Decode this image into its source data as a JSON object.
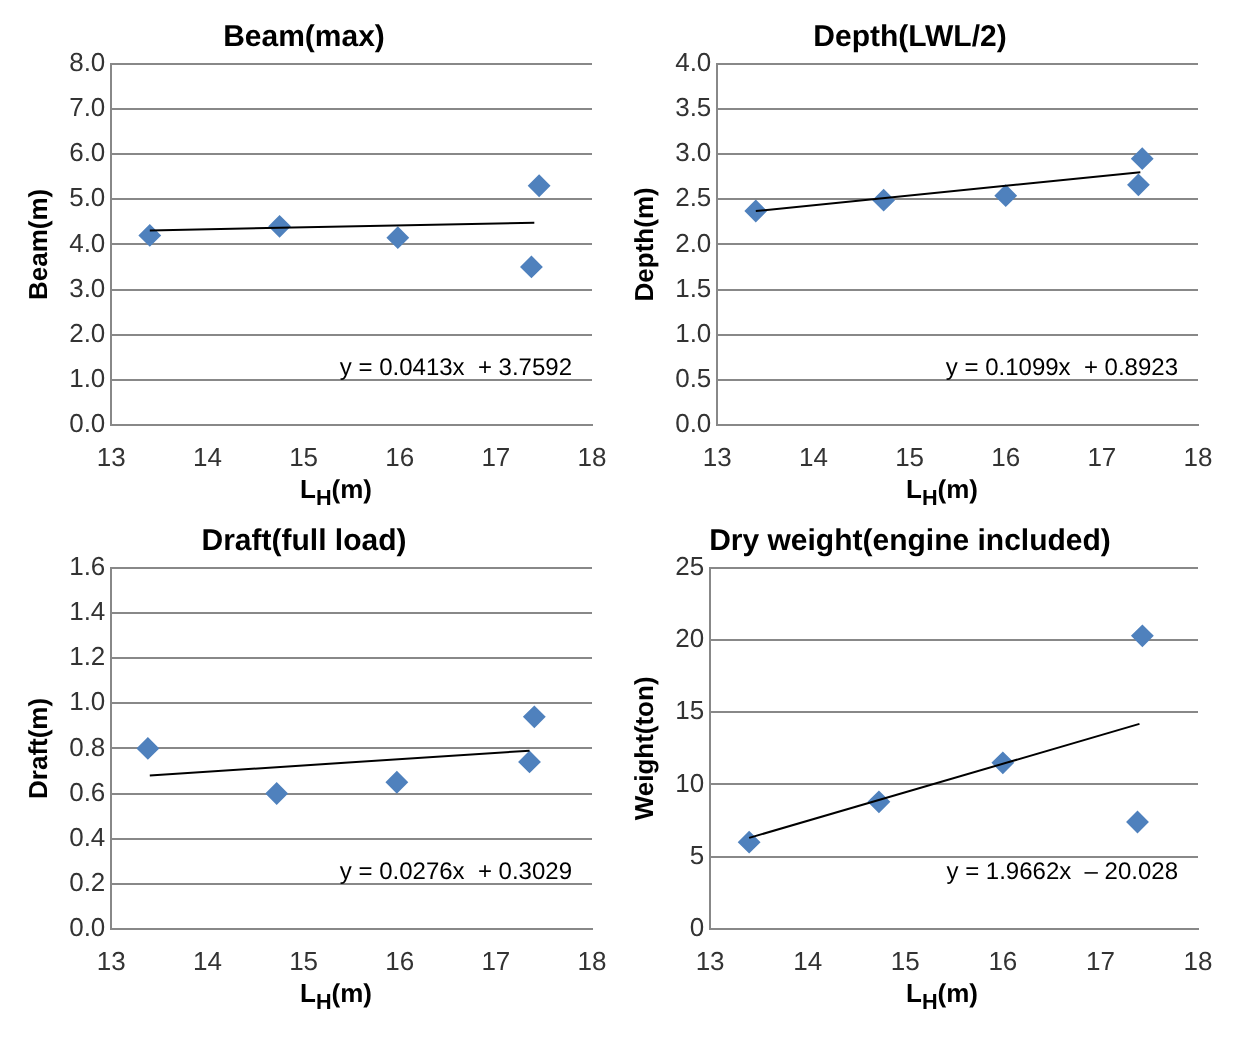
{
  "chart_data": [
    {
      "type": "scatter",
      "title": "Beam(max)",
      "xlabel": "L$_{H}$(m)",
      "ylabel": "Beam(m)",
      "xlim": [
        13,
        18
      ],
      "xticks": [
        13,
        14,
        15,
        16,
        17,
        18
      ],
      "ylim": [
        0,
        8
      ],
      "yticks": [
        {
          "value": 0,
          "label": "0.0"
        },
        {
          "value": 1,
          "label": "1.0"
        },
        {
          "value": 2,
          "label": "2.0"
        },
        {
          "value": 3,
          "label": "3.0"
        },
        {
          "value": 4,
          "label": "4.0"
        },
        {
          "value": 5,
          "label": "5.0"
        },
        {
          "value": 6,
          "label": "6.0"
        },
        {
          "value": 7,
          "label": "7.0"
        },
        {
          "value": 8,
          "label": "8.0"
        }
      ],
      "grid": "y",
      "legend": false,
      "annotations": [
        "y = 0.0413x  + 3.7592"
      ],
      "series": [
        {
          "color": "#4f81bd",
          "marker": "diamond",
          "x": [
            13.4,
            14.75,
            15.98,
            17.37,
            17.45
          ],
          "values": [
            4.2,
            4.4,
            4.15,
            3.5,
            5.3
          ]
        },
        {
          "type": "line",
          "marker": "none",
          "color": "#000000",
          "x": [
            13.4,
            17.4
          ],
          "values": [
            4.31,
            4.48
          ]
        }
      ]
    },
    {
      "type": "scatter",
      "title": "Depth(LWL/2)",
      "xlabel": "L$_{H}$(m)",
      "ylabel": "Depth(m)",
      "xlim": [
        13,
        18
      ],
      "xticks": [
        13,
        14,
        15,
        16,
        17,
        18
      ],
      "ylim": [
        0,
        4
      ],
      "yticks": [
        {
          "value": 0,
          "label": "0.0"
        },
        0.5,
        {
          "value": 1,
          "label": "1.0"
        },
        1.5,
        {
          "value": 2,
          "label": "2.0"
        },
        2.5,
        {
          "value": 3,
          "label": "3.0"
        },
        3.5,
        {
          "value": 4,
          "label": "4.0"
        }
      ],
      "grid": "y",
      "legend": false,
      "annotations": [
        "y = 0.1099x  + 0.8923"
      ],
      "series": [
        {
          "color": "#4f81bd",
          "marker": "diamond",
          "x": [
            13.4,
            14.73,
            16.0,
            17.38,
            17.42
          ],
          "values": [
            2.37,
            2.49,
            2.54,
            2.66,
            2.95
          ]
        },
        {
          "type": "line",
          "marker": "none",
          "color": "#000000",
          "x": [
            13.4,
            17.4
          ],
          "values": [
            2.37,
            2.8
          ]
        }
      ]
    },
    {
      "type": "scatter",
      "title": "Draft(full load)",
      "xlabel": "L$_{H}$(m)",
      "ylabel": "Draft(m)",
      "xlim": [
        13,
        18
      ],
      "xticks": [
        13,
        14,
        15,
        16,
        17,
        18
      ],
      "ylim": [
        0,
        1.6
      ],
      "yticks": [
        {
          "value": 0,
          "label": "0.0"
        },
        0.2,
        0.4,
        0.6,
        0.8,
        {
          "value": 1,
          "label": "1.0"
        },
        1.2,
        1.4,
        1.6
      ],
      "grid": "y",
      "legend": false,
      "annotations": [
        "y = 0.0276x  + 0.3029"
      ],
      "series": [
        {
          "color": "#4f81bd",
          "marker": "diamond",
          "x": [
            13.38,
            14.72,
            15.97,
            17.35,
            17.4
          ],
          "values": [
            0.8,
            0.6,
            0.65,
            0.74,
            0.94
          ]
        },
        {
          "type": "line",
          "marker": "none",
          "color": "#000000",
          "x": [
            13.4,
            17.35
          ],
          "values": [
            0.68,
            0.79
          ]
        }
      ]
    },
    {
      "type": "scatter",
      "title": "Dry weight(engine included)",
      "xlabel": "L$_{H}$(m)",
      "ylabel": "Weight(ton)",
      "xlim": [
        13,
        18
      ],
      "xticks": [
        13,
        14,
        15,
        16,
        17,
        18
      ],
      "ylim": [
        0,
        25
      ],
      "yticks": [
        0,
        5,
        10,
        15,
        20,
        25
      ],
      "grid": "y",
      "legend": false,
      "annotations": [
        "y = 1.9662x  – 20.028"
      ],
      "series": [
        {
          "color": "#4f81bd",
          "marker": "diamond",
          "x": [
            13.4,
            14.73,
            16.0,
            17.38,
            17.43
          ],
          "values": [
            6.0,
            8.8,
            11.5,
            7.4,
            20.3
          ]
        },
        {
          "type": "line",
          "marker": "none",
          "color": "#000000",
          "x": [
            13.4,
            17.4
          ],
          "values": [
            6.3,
            14.2
          ]
        }
      ]
    }
  ]
}
